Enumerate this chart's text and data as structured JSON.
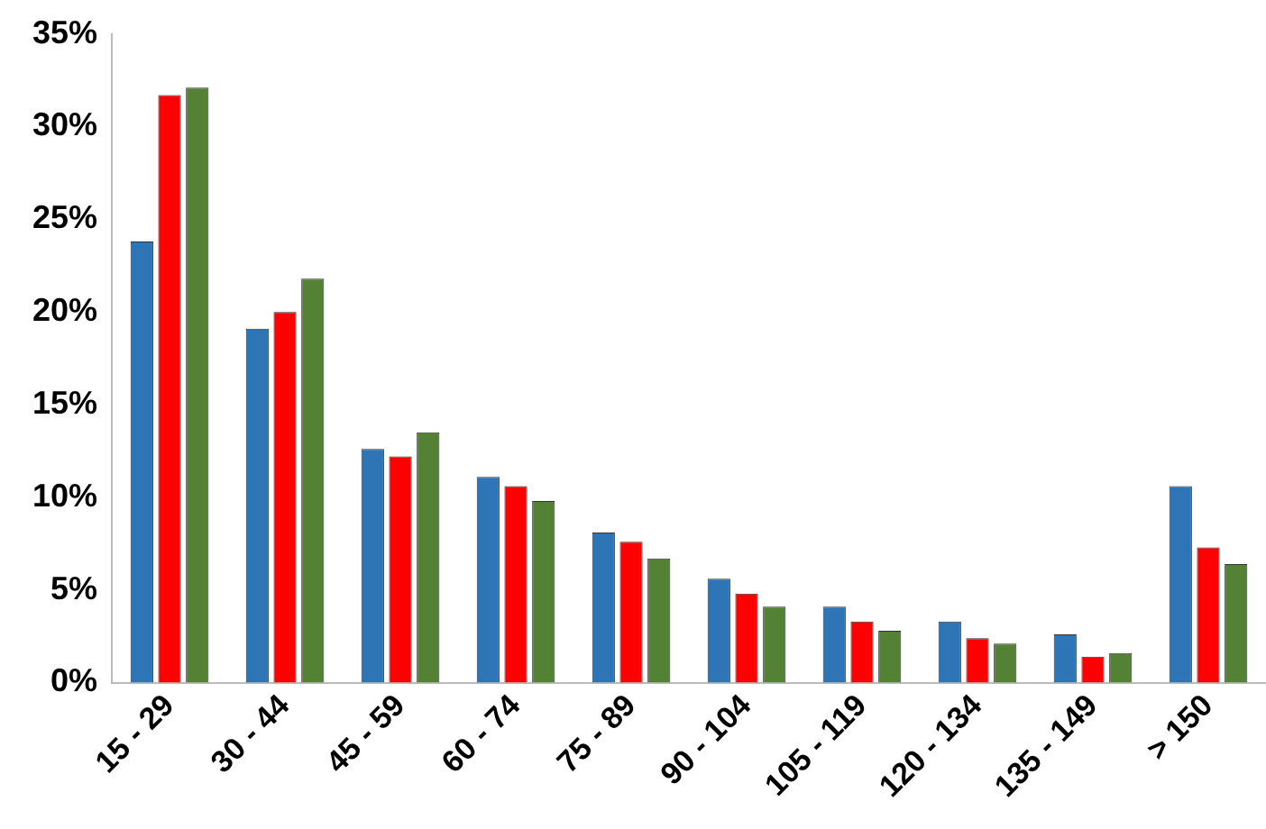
{
  "chart_data": {
    "type": "bar",
    "categories": [
      "15 - 29",
      "30 - 44",
      "45 - 59",
      "60 - 74",
      "75 - 89",
      "90 - 104",
      "105 - 119",
      "120 - 134",
      "135 - 149",
      "> 150"
    ],
    "series": [
      {
        "color": "#2e75b6",
        "values": [
          23.8,
          19.1,
          12.6,
          11.1,
          8.1,
          5.6,
          4.1,
          3.3,
          2.6,
          10.6
        ]
      },
      {
        "color": "#ff0000",
        "values": [
          31.7,
          20.0,
          12.2,
          10.6,
          7.6,
          4.8,
          3.3,
          2.4,
          1.4,
          7.3
        ]
      },
      {
        "color": "#548235",
        "values": [
          32.1,
          21.8,
          13.5,
          9.8,
          6.7,
          4.1,
          2.8,
          2.1,
          1.6,
          6.4
        ]
      }
    ],
    "ylim": [
      0,
      35
    ],
    "yticks": [
      {
        "value": 0,
        "label": "0%"
      },
      {
        "value": 5,
        "label": "5%"
      },
      {
        "value": 10,
        "label": "10%"
      },
      {
        "value": 15,
        "label": "15%"
      },
      {
        "value": 20,
        "label": "20%"
      },
      {
        "value": 25,
        "label": "25%"
      },
      {
        "value": 30,
        "label": "30%"
      },
      {
        "value": 35,
        "label": "35%"
      }
    ],
    "grid": false,
    "legend": false
  }
}
